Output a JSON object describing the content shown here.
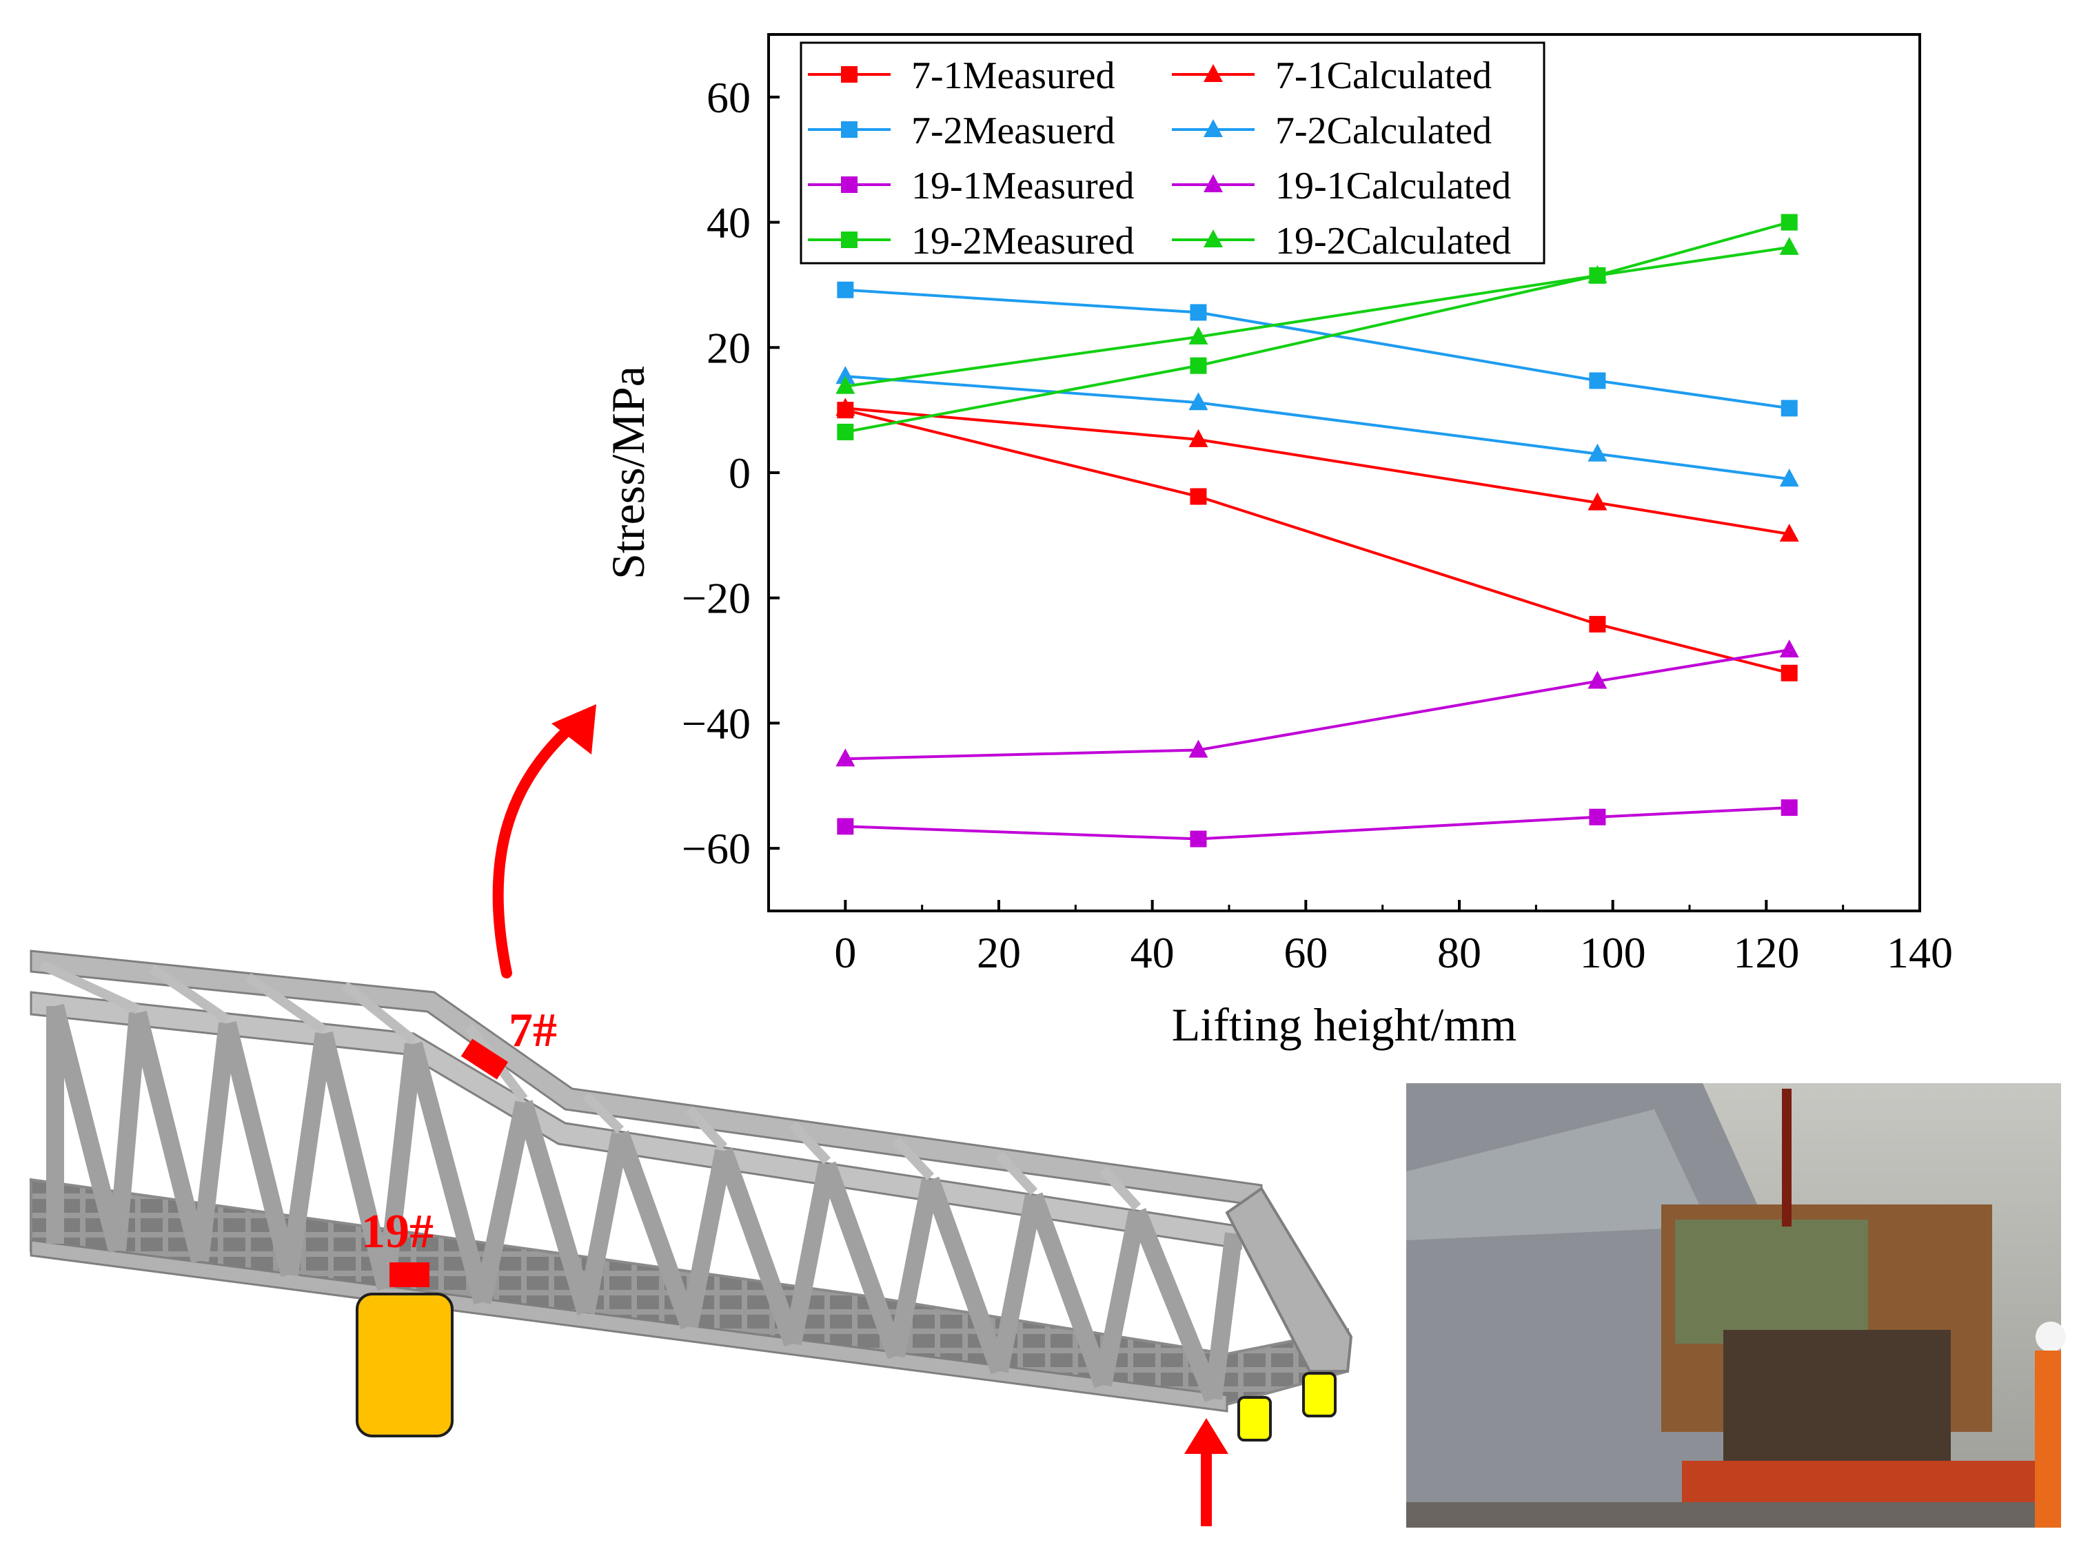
{
  "chart_data": {
    "type": "line",
    "title": "",
    "xlabel": "Lifting height/mm",
    "ylabel": "Stress/MPa",
    "xlim": [
      -10,
      140
    ],
    "ylim": [
      -70,
      70
    ],
    "xticks": [
      0,
      20,
      40,
      60,
      80,
      100,
      120,
      140
    ],
    "yticks": [
      -60,
      -40,
      -20,
      0,
      20,
      40,
      60
    ],
    "x": [
      0,
      46,
      98,
      123
    ],
    "grid": false,
    "legend_position": "top-left",
    "series": [
      {
        "name": "7-1Measured",
        "color": "#ff0000",
        "marker": "square",
        "values": [
          10,
          -3.8,
          -24.2,
          -32
        ]
      },
      {
        "name": "7-1Calculated",
        "color": "#ff0000",
        "marker": "triangle",
        "values": [
          10.3,
          5.3,
          -4.8,
          -9.8
        ]
      },
      {
        "name": "7-2Measuerd",
        "color": "#1e9cf0",
        "marker": "square",
        "values": [
          29.2,
          25.6,
          14.7,
          10.3
        ]
      },
      {
        "name": "7-2Calculated",
        "color": "#1e9cf0",
        "marker": "triangle",
        "values": [
          15.4,
          11.2,
          3,
          -1
        ]
      },
      {
        "name": "19-1Measured",
        "color": "#c000d8",
        "marker": "square",
        "values": [
          -56.5,
          -58.5,
          -55,
          -53.5
        ]
      },
      {
        "name": "19-1Calculated",
        "color": "#c000d8",
        "marker": "triangle",
        "values": [
          -45.7,
          -44.3,
          -33.3,
          -28.3
        ]
      },
      {
        "name": "19-2Measured",
        "color": "#12d012",
        "marker": "square",
        "values": [
          6.5,
          17.1,
          31.5,
          40
        ]
      },
      {
        "name": "19-2Calculated",
        "color": "#12d012",
        "marker": "triangle",
        "values": [
          13.8,
          21.7,
          31.5,
          36
        ]
      }
    ]
  },
  "labels": {
    "gauge_7": "7#",
    "gauge_19": "19#"
  },
  "colors": {
    "annotation_red": "#ff0000",
    "support_orange": "#ffc000",
    "bearing_yellow": "#ffff00",
    "truss_gray": "#a6a6a6"
  }
}
